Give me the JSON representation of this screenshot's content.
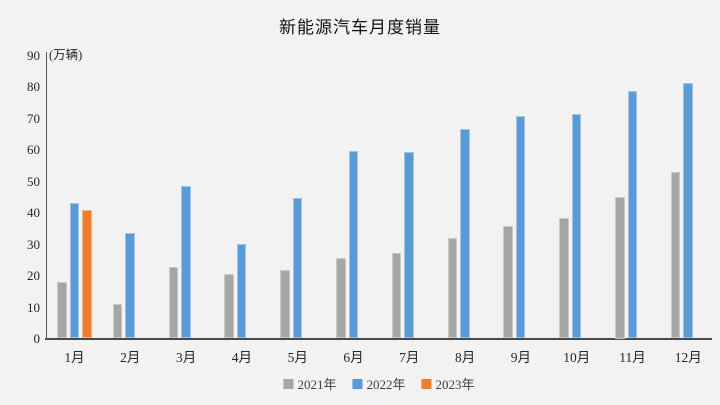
{
  "chart_data": {
    "type": "bar",
    "title": "新能源汽车月度销量",
    "unit_label": "(万辆)",
    "categories": [
      "1月",
      "2月",
      "3月",
      "4月",
      "5月",
      "6月",
      "7月",
      "8月",
      "9月",
      "10月",
      "11月",
      "12月"
    ],
    "series": [
      {
        "name": "2021年",
        "color": "#a5a5a5",
        "border_color": "#c9c9c9",
        "values": [
          17.9,
          11.0,
          22.6,
          20.6,
          21.7,
          25.6,
          27.1,
          32.1,
          35.7,
          38.3,
          45.0,
          53.1
        ]
      },
      {
        "name": "2022年",
        "color": "#5b9bd5",
        "border_color": "#9dc3e6",
        "values": [
          43.1,
          33.4,
          48.4,
          29.9,
          44.7,
          59.6,
          59.3,
          66.6,
          70.8,
          71.4,
          78.6,
          81.4
        ]
      },
      {
        "name": "2023年",
        "color": "#ed7d31",
        "border_color": "#f4b183",
        "values": [
          40.8,
          null,
          null,
          null,
          null,
          null,
          null,
          null,
          null,
          null,
          null,
          null
        ]
      }
    ],
    "ylim": [
      0,
      90
    ],
    "ytick_step": 10,
    "grid": false,
    "legend_position": "bottom"
  },
  "colors": {
    "background": "#f2f2f2",
    "y_axis_line": "#595959",
    "x_axis_line": "#4a4a4a",
    "tick_text": "#262626",
    "legend_text": "#404040",
    "title_text": "#111111"
  }
}
